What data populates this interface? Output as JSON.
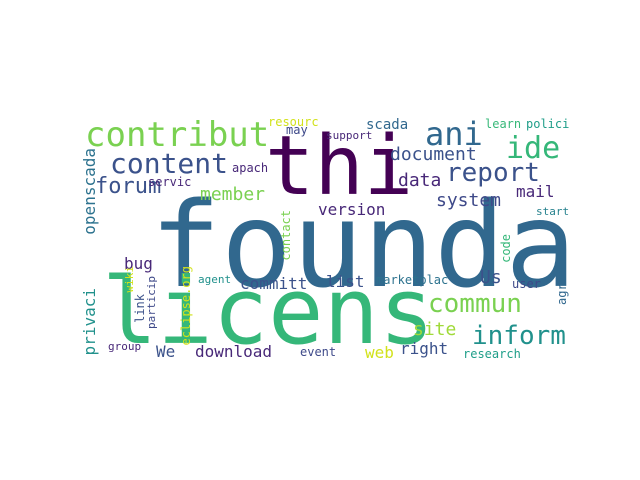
{
  "colors": {
    "dark_purple": "#440154",
    "indigo": "#472d7b",
    "blue": "#3b528b",
    "steel": "#2c728e",
    "teal": "#21918c",
    "green": "#28ae80",
    "lime": "#5ec962",
    "yellow_green": "#addc30",
    "yellow": "#fde725"
  },
  "words": [
    {
      "text": "foundat",
      "color": "#31688e"
    },
    {
      "text": "thi",
      "color": "#440154"
    },
    {
      "text": "licens",
      "color": "#35b779"
    },
    {
      "text": "contribut",
      "color": "#7ad151"
    },
    {
      "text": "content",
      "color": "#3b528b"
    },
    {
      "text": "ani",
      "color": "#31688e"
    },
    {
      "text": "ide",
      "color": "#35b779"
    },
    {
      "text": "report",
      "color": "#3b528b"
    },
    {
      "text": "document",
      "color": "#3b528b"
    },
    {
      "text": "commun",
      "color": "#7ad151"
    },
    {
      "text": "inform",
      "color": "#21918c"
    },
    {
      "text": "forum",
      "color": "#3b528b"
    },
    {
      "text": "member",
      "color": "#7ad151"
    },
    {
      "text": "data",
      "color": "#482878"
    },
    {
      "text": "system",
      "color": "#3e4989"
    },
    {
      "text": "mail",
      "color": "#482878"
    },
    {
      "text": "version",
      "color": "#482878"
    },
    {
      "text": "Us",
      "color": "#3b528b"
    },
    {
      "text": "committ",
      "color": "#3b528b"
    },
    {
      "text": "list",
      "color": "#3b528b"
    },
    {
      "text": "site",
      "color": "#a0da39"
    },
    {
      "text": "right",
      "color": "#3b528b"
    },
    {
      "text": "web",
      "color": "#d2e21b"
    },
    {
      "text": "download",
      "color": "#482878"
    },
    {
      "text": "We",
      "color": "#3b528b"
    },
    {
      "text": "bug",
      "color": "#482878"
    },
    {
      "text": "openscada",
      "color": "#2c728e"
    },
    {
      "text": "privaci",
      "color": "#21918c"
    },
    {
      "text": "servic",
      "color": "#482878"
    },
    {
      "text": "apach",
      "color": "#482878"
    },
    {
      "text": "resourc",
      "color": "#d2e21b"
    },
    {
      "text": "may",
      "color": "#3e4989"
    },
    {
      "text": "support",
      "color": "#482878"
    },
    {
      "text": "scada",
      "color": "#31688e"
    },
    {
      "text": "learn",
      "color": "#37b878"
    },
    {
      "text": "polici",
      "color": "#1f9e89"
    },
    {
      "text": "code",
      "color": "#35b779"
    },
    {
      "text": "start",
      "color": "#26828e"
    },
    {
      "text": "user",
      "color": "#3e4989"
    },
    {
      "text": "agreement",
      "color": "#31688e"
    },
    {
      "text": "research",
      "color": "#1f9e89"
    },
    {
      "text": "event",
      "color": "#3e4989"
    },
    {
      "text": "marketplac",
      "color": "#2c728e"
    },
    {
      "text": "contact",
      "color": "#7ad151"
    },
    {
      "text": "agent",
      "color": "#21918c"
    },
    {
      "text": "eclipse.org",
      "color": "#d2e21b"
    },
    {
      "text": "link",
      "color": "#3b528b"
    },
    {
      "text": "particip",
      "color": "#3e4989"
    },
    {
      "text": "wiki",
      "color": "#d2e21b"
    },
    {
      "text": "group",
      "color": "#482878"
    }
  ]
}
